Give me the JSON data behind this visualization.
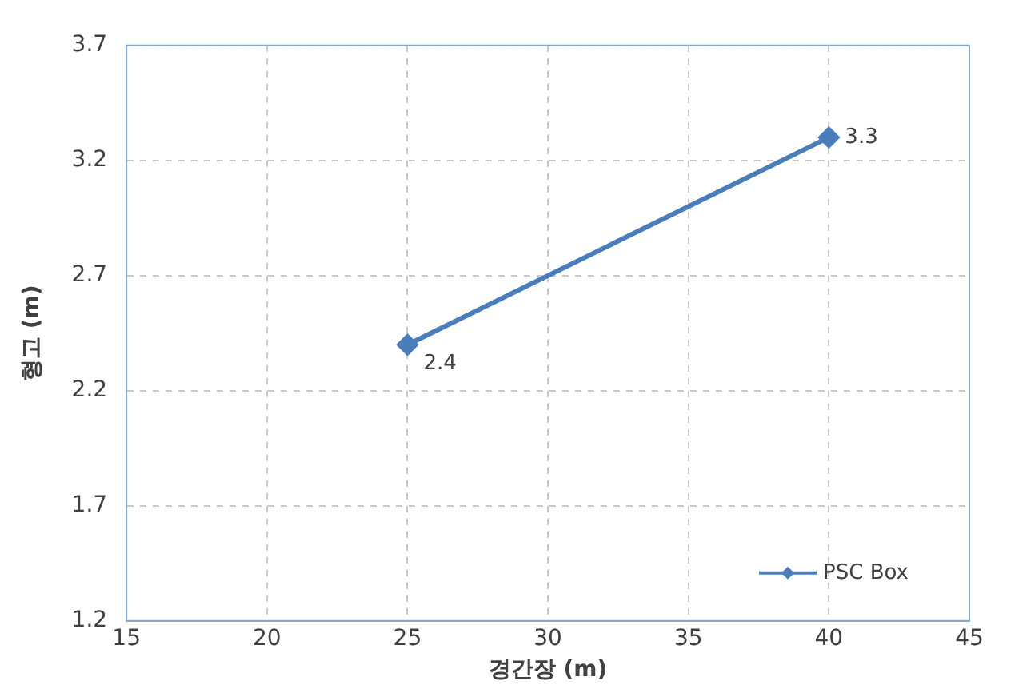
{
  "chart_data": {
    "type": "line",
    "xlabel": "경간장 (m)",
    "ylabel": "형고 (m)",
    "x": [
      25,
      40
    ],
    "series": [
      {
        "name": "PSC Box",
        "color": "#4a7ebb",
        "values": [
          2.4,
          3.3
        ]
      }
    ],
    "xlim": [
      15,
      45
    ],
    "xticks": [
      15,
      20,
      25,
      30,
      35,
      40,
      45
    ],
    "ylim": [
      1.2,
      3.7
    ],
    "yticks": [
      1.2,
      1.7,
      2.2,
      2.7,
      3.2,
      3.7
    ],
    "grid": true,
    "legend": "bottom right",
    "marker": "diamond",
    "line_style": "solid",
    "data_labels": true
  }
}
